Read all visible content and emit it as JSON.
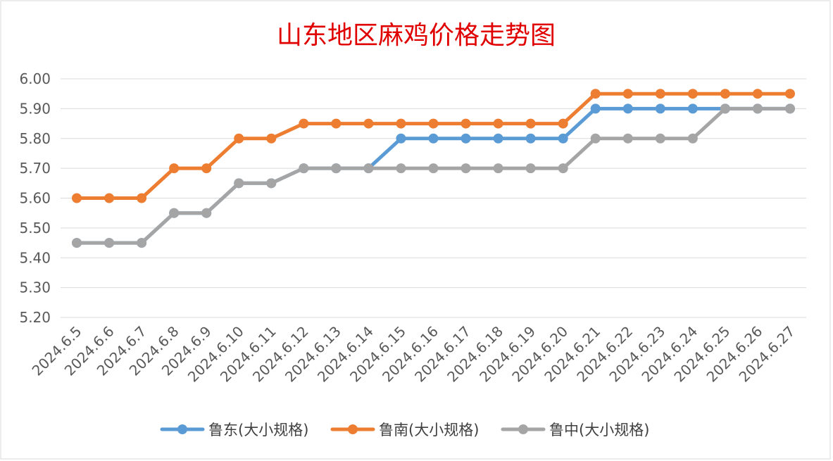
{
  "chart_data": {
    "type": "line",
    "title": "山东地区麻鸡价格走势图",
    "xlabel": "",
    "ylabel": "",
    "ylim": [
      5.2,
      6.0
    ],
    "yticks": [
      "6.00",
      "5.90",
      "5.80",
      "5.70",
      "5.60",
      "5.50",
      "5.40",
      "5.30",
      "5.20"
    ],
    "grid": true,
    "legend": "bottom",
    "categories": [
      "2024.6.5",
      "2024.6.6",
      "2024.6.7",
      "2024.6.8",
      "2024.6.9",
      "2024.6.10",
      "2024.6.11",
      "2024.6.12",
      "2024.6.13",
      "2024.6.14",
      "2024.6.15",
      "2024.6.16",
      "2024.6.17",
      "2024.6.18",
      "2024.6.19",
      "2024.6.20",
      "2024.6.21",
      "2024.6.22",
      "2024.6.23",
      "2024.6.24",
      "2024.6.25",
      "2024.6.26",
      "2024.6.27"
    ],
    "series": [
      {
        "name": "鲁东(大小规格)",
        "color": "#5b9bd5",
        "values": [
          5.45,
          5.45,
          5.45,
          5.55,
          5.55,
          5.65,
          5.65,
          5.7,
          5.7,
          5.7,
          5.8,
          5.8,
          5.8,
          5.8,
          5.8,
          5.8,
          5.9,
          5.9,
          5.9,
          5.9,
          5.9,
          5.9,
          5.9
        ]
      },
      {
        "name": "鲁南(大小规格)",
        "color": "#ed7d31",
        "values": [
          5.6,
          5.6,
          5.6,
          5.7,
          5.7,
          5.8,
          5.8,
          5.85,
          5.85,
          5.85,
          5.85,
          5.85,
          5.85,
          5.85,
          5.85,
          5.85,
          5.95,
          5.95,
          5.95,
          5.95,
          5.95,
          5.95,
          5.95
        ]
      },
      {
        "name": "鲁中(大小规格)",
        "color": "#a5a5a5",
        "values": [
          5.45,
          5.45,
          5.45,
          5.55,
          5.55,
          5.65,
          5.65,
          5.7,
          5.7,
          5.7,
          5.7,
          5.7,
          5.7,
          5.7,
          5.7,
          5.7,
          5.8,
          5.8,
          5.8,
          5.8,
          5.9,
          5.9,
          5.9
        ]
      }
    ]
  }
}
